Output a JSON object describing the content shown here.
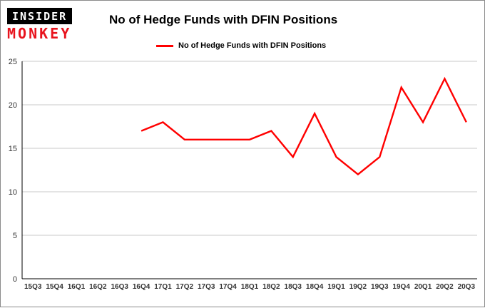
{
  "logo": {
    "top": "INSIDER",
    "bottom": "MONKEY"
  },
  "header": {
    "title": "No of Hedge Funds with DFIN Positions"
  },
  "legend": {
    "label": "No of Hedge Funds with DFIN Positions"
  },
  "colors": {
    "line": "#ff0000",
    "grid": "#c9c9c9",
    "axis": "#000000",
    "tick_text": "#333333",
    "logo_red": "#e8131d"
  },
  "chart_data": {
    "type": "line",
    "title": "No of Hedge Funds with DFIN Positions",
    "xlabel": "",
    "ylabel": "",
    "categories": [
      "15Q3",
      "15Q4",
      "16Q1",
      "16Q2",
      "16Q3",
      "16Q4",
      "17Q1",
      "17Q2",
      "17Q3",
      "17Q4",
      "18Q1",
      "18Q2",
      "18Q3",
      "18Q4",
      "19Q1",
      "19Q2",
      "19Q3",
      "19Q4",
      "20Q1",
      "20Q2",
      "20Q3"
    ],
    "series": [
      {
        "name": "No of Hedge Funds with DFIN Positions",
        "values": [
          null,
          null,
          null,
          null,
          null,
          17,
          18,
          16,
          16,
          16,
          16,
          17,
          14,
          19,
          14,
          12,
          14,
          22,
          18,
          23,
          18
        ]
      }
    ],
    "ylim": [
      0,
      25
    ],
    "yticks": [
      0,
      5,
      10,
      15,
      20,
      25
    ],
    "grid": true,
    "legend_position": "top"
  }
}
